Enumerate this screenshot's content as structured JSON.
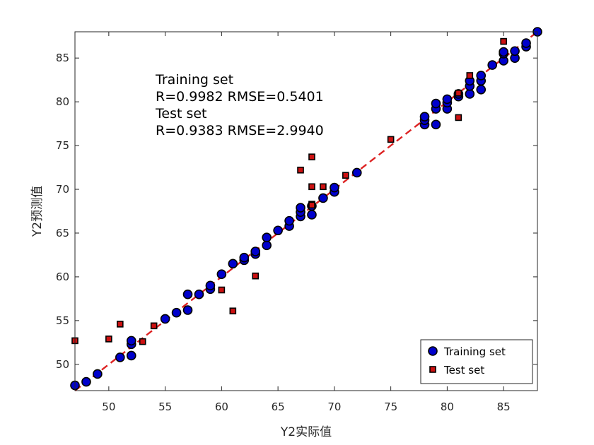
{
  "colors": {
    "training_fill": "#0000CC",
    "training_edge": "#000000",
    "test_fill": "#CC1111",
    "test_edge": "#000000",
    "fit_line": "#DD2222",
    "axis": "#262626"
  },
  "chart_data": {
    "type": "scatter",
    "xlabel": "Y2实际值",
    "ylabel": "Y2预测值",
    "xlim": [
      47,
      88
    ],
    "ylim": [
      47,
      88
    ],
    "xticks": [
      50,
      55,
      60,
      65,
      70,
      75,
      80,
      85
    ],
    "yticks": [
      50,
      55,
      60,
      65,
      70,
      75,
      80,
      85
    ],
    "annotation": [
      "Training set",
      "R=0.9982 RMSE=0.5401",
      "Test set",
      "R=0.9383 RMSE=2.9940"
    ],
    "legend": {
      "position": "bottom-right",
      "entries": [
        "Training set",
        "Test set"
      ]
    },
    "reference_line": {
      "style": "dashed",
      "from": [
        47,
        47
      ],
      "to": [
        88,
        88
      ]
    },
    "series": [
      {
        "name": "Training set",
        "marker": "circle",
        "x": [
          47,
          48,
          49,
          51,
          52,
          52,
          52,
          55,
          56,
          57,
          57,
          58,
          59,
          59,
          60,
          61,
          62,
          62,
          63,
          63,
          64,
          64,
          65,
          66,
          66,
          67,
          67,
          67,
          68,
          68,
          69,
          70,
          70,
          72,
          78,
          78,
          78,
          79,
          79,
          79,
          80,
          80,
          80,
          81,
          81,
          82,
          82,
          82,
          83,
          83,
          83,
          84,
          85,
          85,
          85,
          86,
          86,
          87,
          87,
          88
        ],
        "y": [
          47.6,
          48.0,
          48.9,
          50.8,
          51.0,
          52.3,
          52.7,
          55.2,
          55.9,
          56.2,
          58.0,
          58.0,
          58.6,
          59.0,
          60.3,
          61.5,
          61.9,
          62.2,
          62.6,
          62.9,
          63.6,
          64.5,
          65.3,
          65.8,
          66.4,
          66.9,
          67.4,
          67.9,
          67.1,
          68.1,
          69.0,
          69.7,
          70.2,
          71.9,
          77.4,
          77.9,
          78.3,
          77.4,
          79.2,
          79.8,
          79.2,
          79.9,
          80.3,
          80.6,
          80.9,
          80.9,
          81.8,
          82.4,
          81.4,
          82.4,
          83.0,
          84.2,
          84.7,
          85.5,
          85.7,
          85.0,
          85.8,
          86.3,
          86.7,
          88.0
        ]
      },
      {
        "name": "Test set",
        "marker": "square",
        "x": [
          47,
          50,
          51,
          53,
          54,
          60,
          61,
          63,
          67,
          68,
          68,
          68,
          68,
          69,
          71,
          75,
          81,
          81,
          82,
          85
        ],
        "y": [
          52.7,
          52.9,
          54.6,
          52.6,
          54.4,
          58.5,
          56.1,
          60.1,
          72.2,
          73.7,
          70.3,
          68.3,
          68.2,
          70.3,
          71.6,
          75.7,
          78.2,
          81.0,
          83.0,
          86.9
        ]
      }
    ]
  }
}
